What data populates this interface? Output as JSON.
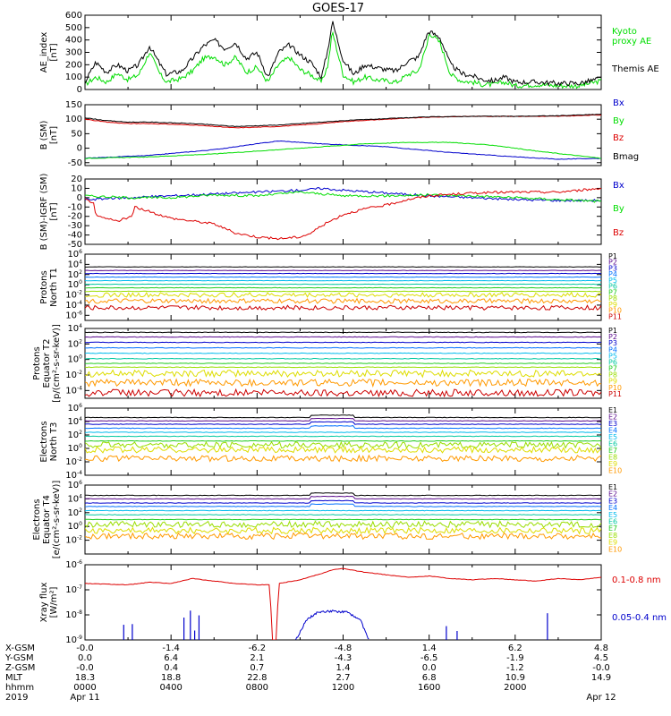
{
  "title": "GOES-17",
  "colors": {
    "black": "#000000",
    "red": "#dd0000",
    "green": "#00dd00",
    "blue": "#0000cc",
    "palette11": [
      "#000000",
      "#5a0a8c",
      "#0000cc",
      "#0070ff",
      "#00bbee",
      "#00c8a0",
      "#22cc22",
      "#99dd00",
      "#dddd00",
      "#ff9900",
      "#cc0000"
    ]
  },
  "chart_data": [
    {
      "type": "line",
      "panel": "ae",
      "ylabel": [
        "AE_index",
        "[nT]"
      ],
      "yscale": "linear",
      "ylim": [
        0,
        600
      ],
      "yticks": [
        0,
        100,
        200,
        300,
        400,
        500,
        600
      ],
      "ytick_labels": [
        "0",
        "100",
        "200",
        "300",
        "400",
        "500",
        "600"
      ],
      "xlim": [
        0,
        24
      ],
      "series": [
        {
          "name": "Kyoto proxy AE",
          "legend": [
            "Kyoto",
            "proxy AE"
          ],
          "color": "#00dd00",
          "x": [
            0,
            0.5,
            1,
            1.5,
            2,
            2.5,
            3,
            3.5,
            3.8,
            4,
            4.5,
            5,
            5.5,
            6,
            6.5,
            7,
            7.5,
            8,
            8.5,
            9,
            9.5,
            10,
            10.5,
            11,
            11.3,
            11.5,
            12,
            12.5,
            13,
            13.5,
            14,
            14.5,
            15,
            15.5,
            15.9,
            16,
            16.5,
            17,
            17.5,
            18,
            18.5,
            19,
            19.5,
            20,
            21,
            22,
            23,
            24
          ],
          "y": [
            40,
            100,
            60,
            130,
            80,
            120,
            300,
            120,
            60,
            70,
            90,
            150,
            250,
            270,
            200,
            260,
            140,
            180,
            60,
            200,
            260,
            160,
            120,
            60,
            200,
            470,
            120,
            60,
            100,
            80,
            70,
            60,
            120,
            150,
            360,
            460,
            380,
            120,
            70,
            60,
            40,
            40,
            60,
            30,
            40,
            30,
            30,
            70
          ]
        },
        {
          "name": "Themis AE",
          "legend": [
            "Themis AE"
          ],
          "color": "#000000",
          "x": [
            0,
            0.5,
            1,
            1.5,
            2,
            2.5,
            3,
            3.5,
            3.8,
            4,
            4.5,
            5,
            5.5,
            6,
            6.5,
            7,
            7.5,
            8,
            8.5,
            9,
            9.5,
            10,
            10.5,
            11,
            11.3,
            11.5,
            12,
            12.5,
            13,
            13.5,
            14,
            14.5,
            15,
            15.5,
            15.9,
            16,
            16.5,
            17,
            17.5,
            18,
            18.5,
            19,
            19.5,
            20,
            21,
            22,
            23,
            24
          ],
          "y": [
            60,
            220,
            140,
            200,
            150,
            200,
            350,
            200,
            120,
            130,
            150,
            250,
            350,
            400,
            330,
            380,
            250,
            300,
            100,
            300,
            360,
            280,
            220,
            100,
            330,
            550,
            240,
            120,
            200,
            180,
            160,
            150,
            230,
            260,
            440,
            470,
            420,
            200,
            130,
            110,
            80,
            70,
            100,
            60,
            60,
            50,
            50,
            90
          ]
        }
      ]
    },
    {
      "type": "line",
      "panel": "b",
      "ylabel": [
        "B (SM)",
        "[nT]"
      ],
      "yscale": "linear",
      "ylim": [
        -60,
        150
      ],
      "yticks": [
        -50,
        0,
        50,
        100,
        150
      ],
      "ytick_labels": [
        "-50",
        "0",
        "50",
        "100",
        "150"
      ],
      "xlim": [
        0,
        24
      ],
      "series": [
        {
          "name": "Bx",
          "color": "#0000cc",
          "x": [
            0,
            3,
            6,
            8,
            9,
            11,
            14,
            17,
            20,
            22,
            24
          ],
          "y": [
            -35,
            -25,
            -5,
            15,
            25,
            15,
            5,
            -15,
            -30,
            -38,
            -35
          ]
        },
        {
          "name": "By",
          "color": "#00dd00",
          "x": [
            0,
            3,
            6,
            9,
            11,
            13,
            15,
            17,
            19,
            21,
            24
          ],
          "y": [
            -35,
            -30,
            -20,
            -5,
            5,
            15,
            20,
            20,
            10,
            -10,
            -35
          ]
        },
        {
          "name": "Bz",
          "color": "#dd0000",
          "x": [
            0,
            1,
            2,
            3,
            5,
            7,
            9,
            10,
            11,
            12,
            14,
            16,
            18,
            20,
            22,
            24
          ],
          "y": [
            100,
            90,
            85,
            85,
            80,
            70,
            75,
            80,
            85,
            92,
            100,
            107,
            110,
            110,
            110,
            115
          ]
        },
        {
          "name": "Bmag",
          "color": "#000000",
          "x": [
            0,
            1,
            2,
            3,
            5,
            7,
            9,
            10,
            11,
            12,
            14,
            16,
            18,
            20,
            22,
            24
          ],
          "y": [
            105,
            95,
            90,
            90,
            85,
            75,
            80,
            85,
            90,
            95,
            102,
            108,
            110,
            110,
            112,
            117
          ]
        }
      ]
    },
    {
      "type": "line",
      "panel": "bdiff",
      "ylabel": [
        "B (SM)-IGRF (SM)",
        "[nT]"
      ],
      "yscale": "linear",
      "ylim": [
        -50,
        20
      ],
      "yticks": [
        -50,
        -40,
        -30,
        -20,
        -10,
        0,
        10,
        20
      ],
      "ytick_labels": [
        "-50",
        "-40",
        "-30",
        "-20",
        "-10",
        "0",
        "10",
        "20"
      ],
      "xlim": [
        0,
        24
      ],
      "series": [
        {
          "name": "Bx",
          "color": "#0000cc",
          "x": [
            0,
            2,
            4,
            6,
            8,
            10,
            11,
            12,
            14,
            16,
            18,
            20,
            22,
            24
          ],
          "y": [
            -2,
            0,
            2,
            4,
            6,
            8,
            10,
            8,
            5,
            2,
            0,
            -2,
            -3,
            -3
          ]
        },
        {
          "name": "By",
          "color": "#00dd00",
          "x": [
            0,
            2,
            4,
            6,
            8,
            10,
            11,
            12,
            14,
            16,
            18,
            20,
            22,
            24
          ],
          "y": [
            2,
            0,
            0,
            3,
            2,
            6,
            4,
            2,
            2,
            3,
            2,
            0,
            -2,
            -4
          ]
        },
        {
          "name": "Bz",
          "color": "#dd0000",
          "x": [
            0,
            0.4,
            0.5,
            1.5,
            2.2,
            2.3,
            4,
            6,
            7,
            8,
            9,
            10,
            10.5,
            11,
            12,
            13,
            14,
            15,
            16,
            18,
            20,
            22,
            23,
            24
          ],
          "y": [
            -2,
            -5,
            -20,
            -25,
            -20,
            -10,
            -22,
            -28,
            -38,
            -42,
            -44,
            -42,
            -38,
            -30,
            -18,
            -12,
            -8,
            -2,
            2,
            5,
            6,
            6,
            8,
            10
          ]
        }
      ]
    },
    {
      "type": "line",
      "panel": "protons-t1",
      "ylabel": [
        "Protons",
        "North T1"
      ],
      "yscale": "log",
      "ylim": [
        -7,
        6
      ],
      "yticks": [
        -6,
        -4,
        -2,
        0,
        2,
        4,
        6
      ],
      "ytick_labels": [
        "10^-6",
        "10^-4",
        "10^-2",
        "10^0",
        "10^2",
        "10^4",
        "10^6"
      ],
      "xlim": [
        0,
        24
      ],
      "series_log10_levels": [
        3.5,
        2.8,
        2.2,
        1.5,
        0.8,
        0.1,
        -0.6,
        -1.3,
        -2.0,
        -3.2,
        -4.5
      ],
      "series": [
        {
          "name": "P1"
        },
        {
          "name": "P2"
        },
        {
          "name": "P3"
        },
        {
          "name": "P4"
        },
        {
          "name": "P5"
        },
        {
          "name": "P6"
        },
        {
          "name": "P7"
        },
        {
          "name": "P8"
        },
        {
          "name": "P9"
        },
        {
          "name": "P10"
        },
        {
          "name": "P11"
        }
      ]
    },
    {
      "type": "line",
      "panel": "protons-t2",
      "ylabel": [
        "Protons",
        "Equator T2",
        "[p/(cm²-s-sr-keV)]"
      ],
      "yscale": "log",
      "ylim": [
        -5,
        4
      ],
      "yticks": [
        -4,
        -2,
        0,
        2,
        4
      ],
      "ytick_labels": [
        "10^-4",
        "10^-2",
        "10^0",
        "10^2",
        "10^4"
      ],
      "xlim": [
        0,
        24
      ],
      "series_log10_levels": [
        3.5,
        2.9,
        2.2,
        1.5,
        0.8,
        0.1,
        -0.5,
        -1.0,
        -1.8,
        -3.0,
        -4.3
      ],
      "series": [
        {
          "name": "P1"
        },
        {
          "name": "P2"
        },
        {
          "name": "P3"
        },
        {
          "name": "P4"
        },
        {
          "name": "P5"
        },
        {
          "name": "P6"
        },
        {
          "name": "P7"
        },
        {
          "name": "P8"
        },
        {
          "name": "P9"
        },
        {
          "name": "P10"
        },
        {
          "name": "P11"
        }
      ]
    },
    {
      "type": "line",
      "panel": "electrons-t3",
      "ylabel": [
        "Electrons",
        "North T3"
      ],
      "yscale": "log",
      "ylim": [
        -4,
        6
      ],
      "yticks": [
        -4,
        -2,
        0,
        2,
        4,
        6
      ],
      "ytick_labels": [
        "10^-4",
        "10^-2",
        "10^0",
        "10^2",
        "10^4",
        "10^6"
      ],
      "xlim": [
        0,
        24
      ],
      "series_log10_levels": [
        4.6,
        4.1,
        3.6,
        3.0,
        2.4,
        1.8,
        1.1,
        0.5,
        -0.2,
        -1.5
      ],
      "series": [
        {
          "name": "E1"
        },
        {
          "name": "E2"
        },
        {
          "name": "E3"
        },
        {
          "name": "E4"
        },
        {
          "name": "E5"
        },
        {
          "name": "E6"
        },
        {
          "name": "E7"
        },
        {
          "name": "E8"
        },
        {
          "name": "E9"
        },
        {
          "name": "E10"
        }
      ]
    },
    {
      "type": "line",
      "panel": "electrons-t4",
      "ylabel": [
        "Electrons",
        "Equator T4",
        "[e/(cm²-s-sr-keV)]"
      ],
      "yscale": "log",
      "ylim": [
        -4,
        6
      ],
      "yticks": [
        -2,
        0,
        2,
        4,
        6
      ],
      "ytick_labels": [
        "10^-2",
        "10^0",
        "10^2",
        "10^4",
        "10^6"
      ],
      "xlim": [
        0,
        24
      ],
      "series_log10_levels": [
        4.5,
        4.0,
        3.4,
        2.9,
        2.3,
        1.7,
        1.0,
        0.3,
        -0.6,
        -1.4
      ],
      "series": [
        {
          "name": "E1"
        },
        {
          "name": "E2"
        },
        {
          "name": "E3"
        },
        {
          "name": "E4"
        },
        {
          "name": "E5"
        },
        {
          "name": "E6"
        },
        {
          "name": "E7"
        },
        {
          "name": "E8"
        },
        {
          "name": "E9"
        },
        {
          "name": "E10"
        }
      ]
    },
    {
      "type": "line",
      "panel": "xray",
      "ylabel": [
        "Xray flux",
        "[W/m²]"
      ],
      "yscale": "log",
      "ylim": [
        -9,
        -6
      ],
      "yticks": [
        -9,
        -8,
        -7,
        -6
      ],
      "ytick_labels": [
        "10^-9",
        "10^-8",
        "10^-7",
        "10^-6"
      ],
      "xlim": [
        0,
        24
      ],
      "series": [
        {
          "name": "0.1-0.8 nm",
          "color": "#dd0000",
          "x": [
            0,
            2,
            3,
            4,
            5,
            6,
            7,
            8,
            8.6,
            8.7,
            8.9,
            9,
            10,
            11,
            11.5,
            12,
            13,
            14,
            15,
            16,
            17,
            18,
            19,
            20,
            21,
            22,
            23,
            24
          ],
          "y": [
            -6.75,
            -6.8,
            -6.7,
            -6.75,
            -6.55,
            -6.65,
            -6.75,
            -6.8,
            -6.8,
            -9,
            -9,
            -6.75,
            -6.6,
            -6.35,
            -6.2,
            -6.15,
            -6.3,
            -6.4,
            -6.5,
            -6.45,
            -6.55,
            -6.6,
            -6.55,
            -6.6,
            -6.65,
            -6.55,
            -6.6,
            -6.5
          ]
        },
        {
          "name": "0.05-0.4 nm",
          "color": "#0000cc",
          "x": [
            9.8,
            10.3,
            10.8,
            11.5,
            12.2,
            12.8,
            13.2
          ],
          "y": [
            -9,
            -8.2,
            -7.9,
            -7.85,
            -7.9,
            -8.2,
            -9
          ]
        }
      ]
    }
  ],
  "xaxis": {
    "rows": [
      {
        "label": "X-GSM",
        "values": [
          "-0.0",
          "-1.4",
          "-6.2",
          "-4.8",
          "1.4",
          "6.2",
          "4.8"
        ]
      },
      {
        "label": "Y-GSM",
        "values": [
          "0.0",
          "6.4",
          "2.1",
          "-4.3",
          "-6.5",
          "-1.9",
          "4.5"
        ]
      },
      {
        "label": "Z-GSM",
        "values": [
          "-0.0",
          "0.4",
          "0.7",
          "1.4",
          "0.0",
          "-1.2",
          "-0.0"
        ]
      },
      {
        "label": "MLT",
        "values": [
          "18.3",
          "18.8",
          "22.8",
          "2.7",
          "6.8",
          "10.9",
          "14.9"
        ]
      },
      {
        "label": "hhmm",
        "values": [
          "0000",
          "0400",
          "0800",
          "1200",
          "1600",
          "2000",
          ""
        ]
      },
      {
        "label": "2019",
        "values": [
          "Apr 11",
          "",
          "",
          "",
          "",
          "",
          "Apr 12"
        ]
      }
    ]
  }
}
